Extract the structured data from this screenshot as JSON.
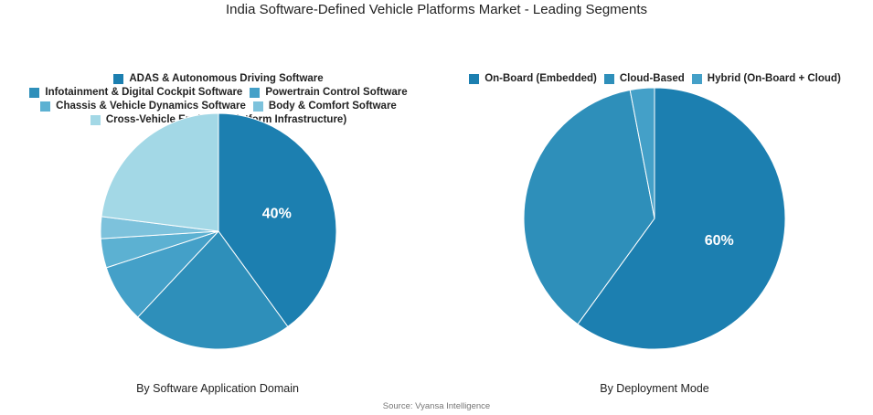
{
  "title": "India Software-Defined Vehicle Platforms Market - Leading Segments",
  "source": "Source: Vyansa Intelligence",
  "chart_data": [
    {
      "type": "pie",
      "caption": "By Software Application Domain",
      "legend_position": "top",
      "slices": [
        {
          "label": "ADAS & Autonomous Driving Software",
          "value": 40,
          "color": "#1c7fb0",
          "value_label": "40%"
        },
        {
          "label": "Infotainment & Digital Cockpit Software",
          "value": 22,
          "color": "#2e8fba",
          "value_label": ""
        },
        {
          "label": "Powertrain Control Software",
          "value": 8,
          "color": "#44a0c8",
          "value_label": ""
        },
        {
          "label": "Chassis & Vehicle Dynamics Software",
          "value": 4,
          "color": "#5cb1d2",
          "value_label": ""
        },
        {
          "label": "Body & Comfort Software",
          "value": 3,
          "color": "#7dc2dc",
          "value_label": ""
        },
        {
          "label": "Cross-Vehicle Enablers (Platform Infrastructure)",
          "value": 23,
          "color": "#a3d8e6",
          "value_label": ""
        }
      ]
    },
    {
      "type": "pie",
      "caption": "By Deployment Mode",
      "legend_position": "top",
      "slices": [
        {
          "label": "On-Board (Embedded)",
          "value": 60,
          "color": "#1c7fb0",
          "value_label": "60%"
        },
        {
          "label": "Cloud-Based",
          "value": 37,
          "color": "#2e8fba",
          "value_label": ""
        },
        {
          "label": "Hybrid (On-Board + Cloud)",
          "value": 3,
          "color": "#44a0c8",
          "value_label": ""
        }
      ]
    }
  ]
}
